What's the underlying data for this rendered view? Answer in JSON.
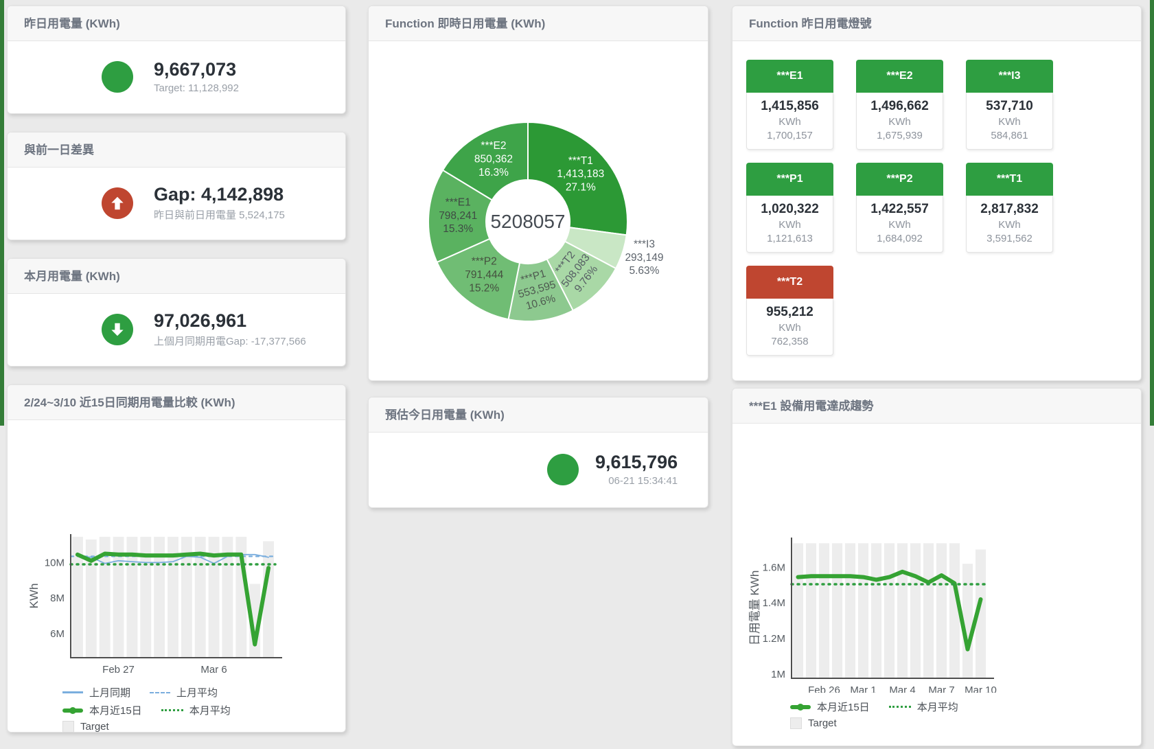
{
  "page": {
    "edge_strip_color": "#347d38"
  },
  "cards": {
    "yesterday": {
      "title": "昨日用電量 (KWh)",
      "value": "9,667,073",
      "sub": "Target: 11,128,992",
      "icon_color": "#2e9e41"
    },
    "gap": {
      "title": "與前一日差異",
      "value": "Gap: 4,142,898",
      "sub": "昨日與前日用電量 5,524,175",
      "icon_color": "#bf4630"
    },
    "month": {
      "title": "本月用電量 (KWh)",
      "value": "97,026,961",
      "sub": "上個月同期用電Gap: -17,377,566",
      "icon_color": "#2e9e41"
    },
    "estimate": {
      "title": "預估今日用電量 (KWh)",
      "value": "9,615,796",
      "sub": "06-21 15:34:41",
      "icon_color": "#2e9e41"
    },
    "realtime": {
      "title": "Function 即時日用電量 (KWh)"
    },
    "compare": {
      "title": "2/24~3/10 近15日同期用電量比較 (KWh)"
    },
    "trend": {
      "title": "***E1 設備用電達成趨勢"
    },
    "lights": {
      "title": "Function 昨日用電燈號",
      "unit": "KWh",
      "tiles": [
        {
          "label": "***E1",
          "value": "1,415,856",
          "target": "1,700,157",
          "status": "green"
        },
        {
          "label": "***E2",
          "value": "1,496,662",
          "target": "1,675,939",
          "status": "green"
        },
        {
          "label": "***I3",
          "value": "537,710",
          "target": "584,861",
          "status": "green"
        },
        {
          "label": "***P1",
          "value": "1,020,322",
          "target": "1,121,613",
          "status": "green"
        },
        {
          "label": "***P2",
          "value": "1,422,557",
          "target": "1,684,092",
          "status": "green"
        },
        {
          "label": "***T1",
          "value": "2,817,832",
          "target": "3,591,562",
          "status": "green"
        },
        {
          "label": "***T2",
          "value": "955,212",
          "target": "762,358",
          "status": "red"
        }
      ]
    }
  },
  "chart_data": [
    {
      "id": "realtime-donut",
      "type": "pie",
      "title": "Function 即時日用電量 (KWh)",
      "center_label": "5208057",
      "center": [
        232,
        263
      ],
      "outer_radius": 145,
      "inner_radius": 61,
      "slices": [
        {
          "name": "***T1",
          "value": 1413183,
          "value_label": "1,413,183",
          "pct_label": "27.1%",
          "color": "#2c9935",
          "label_color": "#ffffff"
        },
        {
          "name": "***I3",
          "value": 293149,
          "value_label": "293,149",
          "pct_label": "5.63%",
          "color": "#c9e7c5",
          "label_color": "#5d646c",
          "label_outside": true
        },
        {
          "name": "***T2",
          "value": 508083,
          "value_label": "508,083",
          "pct_label": "9.76%",
          "color": "#a9d8a6",
          "label_color": "#555c63",
          "label_rotate": -52
        },
        {
          "name": "***P1",
          "value": 553595,
          "value_label": "553,595",
          "pct_label": "10.6%",
          "color": "#8dc98f",
          "label_color": "#4e5a50",
          "label_rotate": -16
        },
        {
          "name": "***P2",
          "value": 791444,
          "value_label": "791,444",
          "pct_label": "15.2%",
          "color": "#70bd74",
          "label_color": "#45503f"
        },
        {
          "name": "***E1",
          "value": 798241,
          "value_label": "798,241",
          "pct_label": "15.3%",
          "color": "#5ab260",
          "label_color": "#3f4a44"
        },
        {
          "name": "***E2",
          "value": 850362,
          "value_label": "850,362",
          "pct_label": "16.3%",
          "color": "#3ea449",
          "label_color": "#ffffff"
        }
      ]
    },
    {
      "id": "compare-chart",
      "type": "line",
      "title": "2/24~3/10 近15日同期用電量比較 (KWh)",
      "ylabel": "KWh",
      "ylim": [
        4.65,
        11.6
      ],
      "yticks": [
        {
          "v": 6,
          "label": "6M"
        },
        {
          "v": 8,
          "label": "8M"
        },
        {
          "v": 10,
          "label": "10M"
        }
      ],
      "xticks": [
        {
          "i": 3,
          "label": "Feb 27"
        },
        {
          "i": 10,
          "label": "Mar 6"
        }
      ],
      "margins": {
        "ml": 92,
        "mr": 102,
        "mt": 166,
        "mb": 34
      },
      "bars": {
        "name": "Target",
        "color": "#ededed",
        "values": [
          11.45,
          11.3,
          11.45,
          11.45,
          11.45,
          11.45,
          11.45,
          11.45,
          11.45,
          11.45,
          11.45,
          11.45,
          11.45,
          8.8,
          11.2
        ]
      },
      "series": [
        {
          "name": "上月同期",
          "color": "#7aaede",
          "width": 1.8,
          "values": [
            10.35,
            10.3,
            9.95,
            10.1,
            10.05,
            10.0,
            10.0,
            10.05,
            10.35,
            10.3,
            9.95,
            10.35,
            10.45,
            10.45,
            10.3
          ]
        },
        {
          "name": "上月平均",
          "color": "#7aaede",
          "width": 2.2,
          "dash": "4 6",
          "const": 10.35
        },
        {
          "name": "本月近15日",
          "color": "#35a333",
          "width": 6,
          "values": [
            10.45,
            10.1,
            10.5,
            10.45,
            10.45,
            10.4,
            10.4,
            10.4,
            10.45,
            10.5,
            10.4,
            10.45,
            10.45,
            5.4,
            9.7
          ]
        },
        {
          "name": "本月平均",
          "color": "#2f9e41",
          "width": 3.5,
          "dash": "2 7",
          "const": 9.9
        }
      ],
      "legend": [
        [
          {
            "marker": "line",
            "color": "#7aaede",
            "label": "上月同期"
          },
          {
            "marker": "dash",
            "color": "#7aaede",
            "label": "上月平均"
          }
        ],
        [
          {
            "marker": "thick",
            "color": "#35a333",
            "label": "本月近15日"
          },
          {
            "marker": "dots",
            "color": "#2f9e41",
            "label": "本月平均"
          }
        ],
        [
          {
            "marker": "square",
            "color": "#ededed",
            "label": "Target"
          }
        ]
      ]
    },
    {
      "id": "trend-chart",
      "type": "line",
      "title": "***E1 設備用電達成趨勢",
      "ylabel": "日用電量 KWh",
      "ylim": [
        0.977,
        1.767
      ],
      "yticks": [
        {
          "v": 1,
          "label": "1M"
        },
        {
          "v": 1.2,
          "label": "1.2M"
        },
        {
          "v": 1.4,
          "label": "1.4M"
        },
        {
          "v": 1.6,
          "label": "1.6M"
        }
      ],
      "xticks": [
        {
          "i": 2,
          "label": "Feb 26"
        },
        {
          "i": 5,
          "label": "Mar 1"
        },
        {
          "i": 8,
          "label": "Mar 4"
        },
        {
          "i": 11,
          "label": "Mar 7"
        },
        {
          "i": 14,
          "label": "Mar 10"
        }
      ],
      "margins": {
        "ml": 86,
        "mr": 224,
        "mt": 166,
        "mb": 21
      },
      "bars": {
        "name": "Target",
        "color": "#ededed",
        "values": [
          1.735,
          1.735,
          1.735,
          1.735,
          1.735,
          1.735,
          1.735,
          1.735,
          1.735,
          1.735,
          1.735,
          1.735,
          1.735,
          1.62,
          1.7
        ]
      },
      "series": [
        {
          "name": "本月近15日",
          "color": "#35a333",
          "width": 6,
          "values": [
            1.545,
            1.55,
            1.55,
            1.55,
            1.55,
            1.545,
            1.53,
            1.545,
            1.575,
            1.55,
            1.515,
            1.555,
            1.51,
            1.14,
            1.42
          ]
        },
        {
          "name": "本月平均",
          "color": "#2f9e41",
          "width": 3.5,
          "dash": "2 7",
          "const": 1.505
        }
      ],
      "legend": [
        [
          {
            "marker": "thick",
            "color": "#35a333",
            "label": "本月近15日"
          },
          {
            "marker": "dots",
            "color": "#2f9e41",
            "label": "本月平均"
          }
        ],
        [
          {
            "marker": "square",
            "color": "#ededed",
            "label": "Target"
          }
        ]
      ]
    }
  ]
}
